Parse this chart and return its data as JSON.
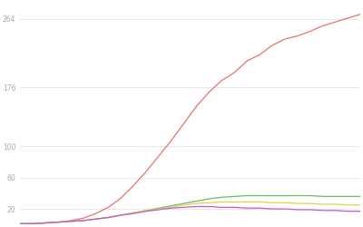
{
  "title": "",
  "background_color": "#ffffff",
  "grid_color": "#dddddd",
  "ylim": [
    0,
    285
  ],
  "yticks": [
    20,
    60,
    100,
    176,
    264
  ],
  "ytick_labels": [
    "20",
    "60",
    "100",
    "176",
    "264"
  ],
  "n_points": 28,
  "series": {
    "red": {
      "color": "#e8736a",
      "values": [
        1,
        1,
        2,
        3,
        5,
        8,
        14,
        22,
        34,
        50,
        68,
        88,
        108,
        130,
        152,
        170,
        185,
        195,
        210,
        218,
        230,
        238,
        242,
        248,
        255,
        260,
        265,
        270
      ]
    },
    "green": {
      "color": "#66bb66",
      "values": [
        1,
        1,
        2,
        3,
        4,
        5,
        7,
        9,
        12,
        15,
        18,
        21,
        24,
        27,
        30,
        33,
        35,
        36,
        37,
        37,
        37,
        37,
        37,
        37,
        36,
        36,
        36,
        36
      ]
    },
    "yellow": {
      "color": "#d8d844",
      "values": [
        1,
        1,
        2,
        3,
        4,
        5,
        7,
        9,
        12,
        15,
        18,
        20,
        22,
        25,
        27,
        28,
        29,
        29,
        29,
        29,
        28,
        28,
        27,
        27,
        26,
        26,
        25,
        25
      ]
    },
    "purple": {
      "color": "#cc55cc",
      "values": [
        1,
        1,
        2,
        3,
        4,
        5,
        7,
        9,
        12,
        14,
        17,
        19,
        21,
        22,
        23,
        23,
        22,
        22,
        21,
        21,
        20,
        20,
        19,
        19,
        18,
        18,
        17,
        17
      ]
    }
  }
}
